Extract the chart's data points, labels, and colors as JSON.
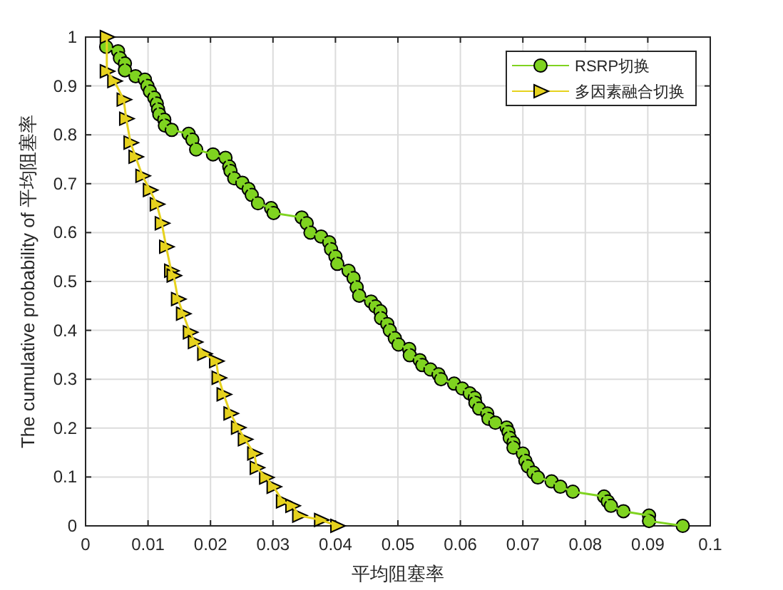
{
  "chart_data": {
    "type": "line",
    "xlabel": "平均阻塞率",
    "ylabel": "The cumulative probability of 平均阻塞率",
    "xlim": [
      0,
      0.1
    ],
    "xticks": [
      0,
      0.01,
      0.02,
      0.03,
      0.04,
      0.05,
      0.06,
      0.07,
      0.08,
      0.09,
      0.1
    ],
    "ylim": [
      0,
      1
    ],
    "yticks": [
      0,
      0.1,
      0.2,
      0.3,
      0.4,
      0.5,
      0.6,
      0.7,
      0.8,
      0.9,
      1
    ],
    "grid": true,
    "legend": "top right",
    "series": [
      {
        "name": "RSRP切换",
        "color": "#7fd320",
        "marker": "circle",
        "x": [
          0.0033,
          0.0052,
          0.0055,
          0.0063,
          0.0063,
          0.008,
          0.0095,
          0.0099,
          0.0103,
          0.011,
          0.0114,
          0.0116,
          0.0118,
          0.0126,
          0.0127,
          0.0138,
          0.0165,
          0.0171,
          0.0177,
          0.0204,
          0.0224,
          0.023,
          0.0232,
          0.0238,
          0.0251,
          0.0261,
          0.0266,
          0.0276,
          0.0297,
          0.0301,
          0.0346,
          0.0354,
          0.036,
          0.0377,
          0.039,
          0.0393,
          0.04,
          0.0403,
          0.0421,
          0.0429,
          0.0434,
          0.0438,
          0.0457,
          0.0464,
          0.0472,
          0.0473,
          0.0483,
          0.0487,
          0.0495,
          0.0501,
          0.0518,
          0.0519,
          0.0535,
          0.0539,
          0.0552,
          0.0565,
          0.0569,
          0.059,
          0.0603,
          0.0615,
          0.0623,
          0.0624,
          0.063,
          0.0643,
          0.0645,
          0.0656,
          0.0674,
          0.0677,
          0.0679,
          0.0685,
          0.0685,
          0.07,
          0.0704,
          0.0708,
          0.0717,
          0.0724,
          0.0746,
          0.076,
          0.078,
          0.083,
          0.0836,
          0.0841,
          0.0861,
          0.0902,
          0.0902,
          0.0956
        ],
        "values": [
          0.98,
          0.971,
          0.957,
          0.946,
          0.932,
          0.92,
          0.913,
          0.9,
          0.889,
          0.876,
          0.864,
          0.852,
          0.842,
          0.831,
          0.819,
          0.81,
          0.802,
          0.79,
          0.77,
          0.76,
          0.753,
          0.735,
          0.726,
          0.711,
          0.702,
          0.689,
          0.677,
          0.66,
          0.65,
          0.64,
          0.631,
          0.619,
          0.6,
          0.592,
          0.58,
          0.566,
          0.551,
          0.536,
          0.522,
          0.507,
          0.488,
          0.471,
          0.459,
          0.449,
          0.439,
          0.425,
          0.413,
          0.4,
          0.384,
          0.371,
          0.362,
          0.349,
          0.339,
          0.329,
          0.32,
          0.31,
          0.3,
          0.291,
          0.281,
          0.271,
          0.262,
          0.252,
          0.24,
          0.23,
          0.219,
          0.211,
          0.201,
          0.192,
          0.18,
          0.17,
          0.16,
          0.148,
          0.133,
          0.122,
          0.109,
          0.099,
          0.091,
          0.08,
          0.07,
          0.06,
          0.05,
          0.041,
          0.03,
          0.021,
          0.01,
          0
        ]
      },
      {
        "name": "多因素融合切换",
        "color": "#e6d21e",
        "marker": "triangle",
        "x": [
          0.0034,
          0.0034,
          0.0046,
          0.0061,
          0.0065,
          0.0072,
          0.008,
          0.0091,
          0.0103,
          0.0114,
          0.0122,
          0.0129,
          0.0137,
          0.0141,
          0.0148,
          0.0156,
          0.0167,
          0.0175,
          0.019,
          0.0209,
          0.0213,
          0.0221,
          0.0232,
          0.0244,
          0.0255,
          0.027,
          0.0274,
          0.0289,
          0.0301,
          0.0316,
          0.0331,
          0.0342,
          0.0377,
          0.0403
        ],
        "values": [
          1,
          0.93,
          0.91,
          0.872,
          0.833,
          0.784,
          0.755,
          0.716,
          0.687,
          0.658,
          0.619,
          0.571,
          0.522,
          0.512,
          0.464,
          0.434,
          0.396,
          0.376,
          0.352,
          0.337,
          0.303,
          0.269,
          0.23,
          0.201,
          0.177,
          0.148,
          0.119,
          0.099,
          0.08,
          0.05,
          0.041,
          0.021,
          0.012,
          0
        ]
      }
    ]
  }
}
